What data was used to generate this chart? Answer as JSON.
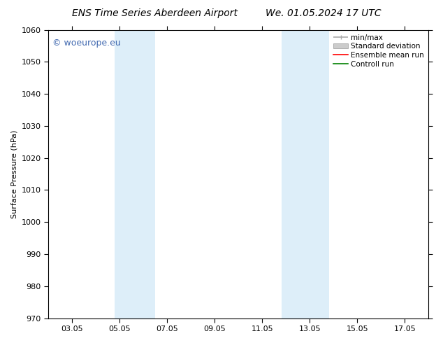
{
  "title_left": "ENS Time Series Aberdeen Airport",
  "title_right": "We. 01.05.2024 17 UTC",
  "ylabel": "Surface Pressure (hPa)",
  "ylim": [
    970,
    1060
  ],
  "yticks": [
    970,
    980,
    990,
    1000,
    1010,
    1020,
    1030,
    1040,
    1050,
    1060
  ],
  "xlim": [
    1.0,
    17.0
  ],
  "xtick_labels": [
    "03.05",
    "05.05",
    "07.05",
    "09.05",
    "11.05",
    "13.05",
    "15.05",
    "17.05"
  ],
  "xtick_positions": [
    2,
    4,
    6,
    8,
    10,
    12,
    14,
    16
  ],
  "shaded_bands": [
    {
      "x_start": 3.8,
      "x_end": 5.5,
      "color": "#ddeef9"
    },
    {
      "x_start": 10.8,
      "x_end": 12.8,
      "color": "#ddeef9"
    }
  ],
  "watermark_text": "© woeurope.eu",
  "watermark_color": "#4169b0",
  "watermark_fontsize": 9,
  "legend_items": [
    {
      "label": "min/max",
      "color": "#aaaaaa",
      "lw": 1.2
    },
    {
      "label": "Standard deviation",
      "color": "#cccccc",
      "lw": 6
    },
    {
      "label": "Ensemble mean run",
      "color": "red",
      "lw": 1.2
    },
    {
      "label": "Controll run",
      "color": "green",
      "lw": 1.2
    }
  ],
  "background_color": "#ffffff",
  "plot_bg_color": "#ffffff",
  "grid_color": "#cccccc",
  "spine_color": "#000000",
  "font_size": 8,
  "title_font_size": 10
}
